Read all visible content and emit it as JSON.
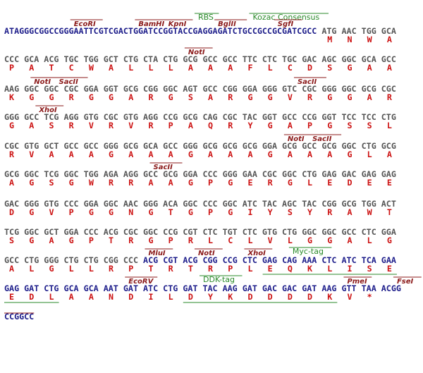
{
  "rows": [
    {
      "dna": [
        {
          "text": "ATAGGGCGGCCGGGAATTCGTCGACTGGATCCGGTACCGAGGAGATCTGCCGCCGCGATCGCC",
          "color": "#1c1c8a"
        },
        {
          "text": "ATG AAC TGG GCA",
          "color": "#555555"
        }
      ],
      "aa": [
        "M",
        "N",
        "W",
        "A"
      ],
      "labels": [
        {
          "text": "RBS",
          "color": "#2a8a2a"
        },
        {
          "text": "Kozac Consensus",
          "color": "#2a8a2a"
        },
        {
          "text": "EcoRI",
          "color": "#8b1a1a"
        },
        {
          "text": "BamHI",
          "color": "#8b1a1a"
        },
        {
          "text": "KpnI",
          "color": "#8b1a1a"
        },
        {
          "text": "BglII",
          "color": "#8b1a1a"
        },
        {
          "text": "SgfI",
          "color": "#8b1a1a"
        }
      ]
    },
    {
      "dna": [
        {
          "text": "CCC GCA ACG TGC TGG GCT CTG CTA CTG GCG GCC GCC TTC CTC TGC GAC AGC GGC GCA GCC",
          "color": "#555555"
        }
      ],
      "aa": [
        "P",
        "A",
        "T",
        "C",
        "W",
        "A",
        "L",
        "L",
        "L",
        "A",
        "A",
        "A",
        "F",
        "L",
        "C",
        "D",
        "S",
        "G",
        "A",
        "A"
      ],
      "labels": [
        {
          "text": "NotI",
          "color": "#8b1a1a"
        }
      ]
    },
    {
      "dna": [
        {
          "text": "AAG GGC GGC CGC GGA GGT GCG CGG GGC AGT GCC CGG GGA GGG GTC CGC GGG GGC GCG CGC",
          "color": "#555555"
        }
      ],
      "aa": [
        "K",
        "G",
        "G",
        "R",
        "G",
        "G",
        "A",
        "R",
        "G",
        "S",
        "A",
        "R",
        "G",
        "G",
        "V",
        "R",
        "G",
        "G",
        "A",
        "R"
      ],
      "labels": [
        {
          "text": "NotI",
          "color": "#8b1a1a"
        },
        {
          "text": "SacII",
          "color": "#8b1a1a"
        },
        {
          "text": "SacII",
          "color": "#8b1a1a"
        }
      ]
    },
    {
      "dna": [
        {
          "text": "GGG GCC TCG AGG GTG CGC GTG AGG CCG GCG CAG CGC TAC GGT GCC CCG GGT TCC TCC CTG",
          "color": "#555555"
        }
      ],
      "aa": [
        "G",
        "A",
        "S",
        "R",
        "V",
        "R",
        "V",
        "R",
        "P",
        "A",
        "Q",
        "R",
        "Y",
        "G",
        "A",
        "P",
        "G",
        "S",
        "S",
        "L"
      ],
      "labels": [
        {
          "text": "XhoI",
          "color": "#8b1a1a"
        }
      ]
    },
    {
      "dna": [
        {
          "text": "CGC GTG GCT GCC GCC GGG GCG GCA GCC GGG GCG GCG GCG GGA GCG GCC GCG GGC CTG GCG",
          "color": "#555555"
        }
      ],
      "aa": [
        "R",
        "V",
        "A",
        "A",
        "A",
        "G",
        "A",
        "A",
        "A",
        "G",
        "A",
        "A",
        "A",
        "G",
        "A",
        "A",
        "A",
        "G",
        "L",
        "A"
      ],
      "labels": [
        {
          "text": "NotI",
          "color": "#8b1a1a"
        },
        {
          "text": "SacII",
          "color": "#8b1a1a"
        }
      ]
    },
    {
      "dna": [
        {
          "text": "GCG GGC TCG GGC TGG AGA AGG GCC GCG GGA CCC GGG GAA CGC GGC CTG GAG GAC GAG GAG",
          "color": "#555555"
        }
      ],
      "aa": [
        "A",
        "G",
        "S",
        "G",
        "W",
        "R",
        "R",
        "A",
        "A",
        "G",
        "P",
        "G",
        "E",
        "R",
        "G",
        "L",
        "E",
        "D",
        "E",
        "E"
      ],
      "labels": [
        {
          "text": "SacII",
          "color": "#8b1a1a"
        }
      ]
    },
    {
      "dna": [
        {
          "text": "GAC GGG GTG CCC GGA GGC AAC GGG ACA GGC CCC GGC ATC TAC AGC TAC CGG GCG TGG ACT",
          "color": "#555555"
        }
      ],
      "aa": [
        "D",
        "G",
        "V",
        "P",
        "G",
        "G",
        "N",
        "G",
        "T",
        "G",
        "P",
        "G",
        "I",
        "Y",
        "S",
        "Y",
        "R",
        "A",
        "W",
        "T"
      ],
      "labels": []
    },
    {
      "dna": [
        {
          "text": "TCG GGC GCT GGA CCC ACG CGC GGC CCG CGT CTC TGT CTC GTG CTG GGC GGC GCC CTC GGA",
          "color": "#555555"
        }
      ],
      "aa": [
        "S",
        "G",
        "A",
        "G",
        "P",
        "T",
        "R",
        "G",
        "P",
        "R",
        "L",
        "C",
        "L",
        "V",
        "L",
        "G",
        "G",
        "A",
        "L",
        "G"
      ],
      "labels": []
    },
    {
      "dna": [
        {
          "text": "GCC CTG GGG CTG CTG CGG CCC",
          "color": "#555555"
        },
        {
          "text": "ACG CGT ACG CGG CCG CTC GAG CAG AAA CTC ATC TCA GAA",
          "color": "#1c1c8a"
        }
      ],
      "aa": [
        "A",
        "L",
        "G",
        "L",
        "L",
        "R",
        "P",
        "T",
        "R",
        "T",
        "R",
        "P",
        "L",
        "E",
        "Q",
        "K",
        "L",
        "I",
        "S",
        "E"
      ],
      "labels": [
        {
          "text": "MluI",
          "color": "#8b1a1a"
        },
        {
          "text": "NotI",
          "color": "#8b1a1a"
        },
        {
          "text": "XhoI",
          "color": "#8b1a1a"
        },
        {
          "text": "Myc-tag",
          "color": "#2a8a2a"
        }
      ]
    },
    {
      "dna": [
        {
          "text": "GAG GAT CTG GCA GCA AAT GAT ATC CTG GAT TAC AAG GAT GAC GAC GAT AAG GTT TAA ACGG",
          "color": "#1c1c8a"
        }
      ],
      "aa": [
        "E",
        "D",
        "L",
        "A",
        "A",
        "N",
        "D",
        "I",
        "L",
        "D",
        "Y",
        "K",
        "D",
        "D",
        "D",
        "D",
        "K",
        "V",
        "*"
      ],
      "labels": [
        {
          "text": "EcoRV",
          "color": "#8b1a1a"
        },
        {
          "text": "DDK-tag",
          "color": "#2a8a2a"
        },
        {
          "text": "PmeI",
          "color": "#8b1a1a"
        },
        {
          "text": "FseI",
          "color": "#8b1a1a"
        }
      ]
    },
    {
      "dna": [
        {
          "text": "CCGGCC",
          "color": "#1c1c8a"
        }
      ],
      "aa": [],
      "labels": []
    }
  ]
}
